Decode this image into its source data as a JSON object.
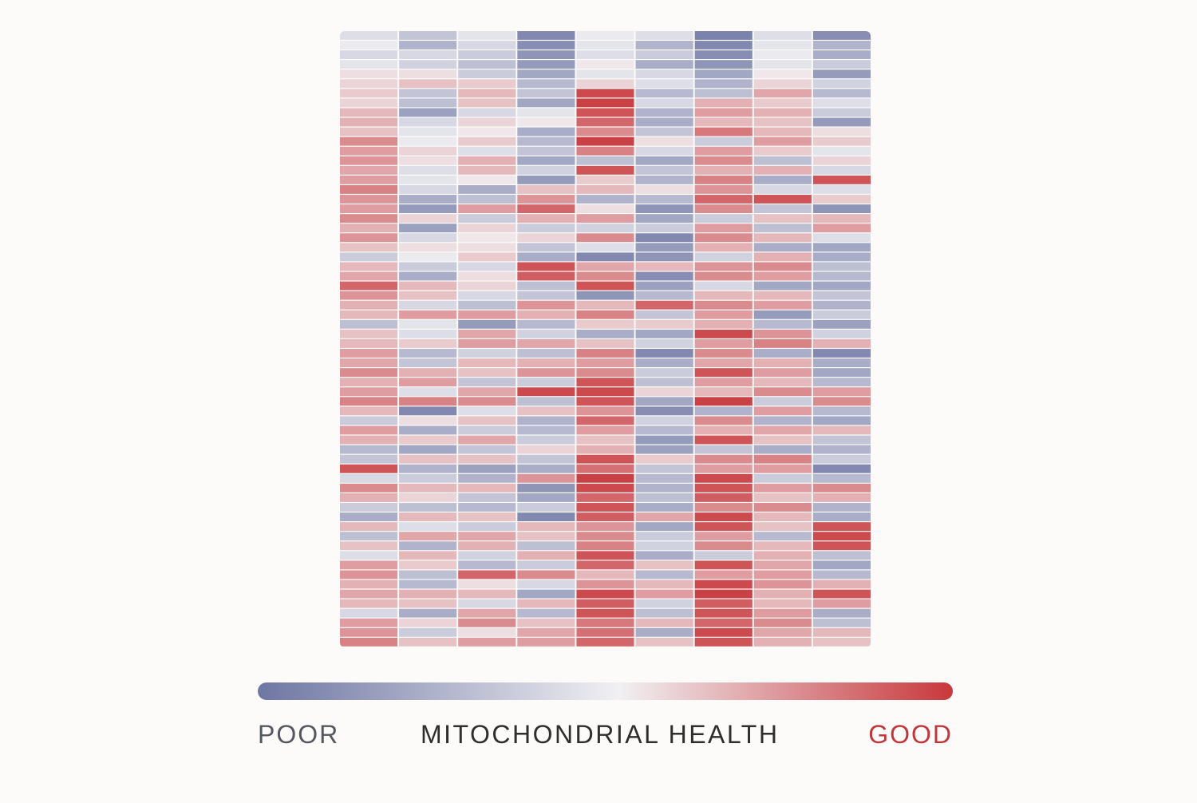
{
  "chart_data": {
    "type": "heatmap",
    "title": "",
    "n_columns": 9,
    "n_rows": 64,
    "value_range": [
      -1,
      1
    ],
    "colorscale": {
      "low": "#6e76a3",
      "mid": "#f1f0f3",
      "high": "#c8383c"
    },
    "legend": {
      "low_label": "POOR",
      "center_label": "MITOCHONDRIAL HEALTH",
      "high_label": "GOOD",
      "placement": "bottom"
    },
    "columns": [
      [
        -0.15,
        -0.05,
        -0.2,
        -0.1,
        0.1,
        0.15,
        0.2,
        0.15,
        0.3,
        0.35,
        0.25,
        0.55,
        0.45,
        0.5,
        0.4,
        0.45,
        0.6,
        0.5,
        0.45,
        0.55,
        0.35,
        0.5,
        0.25,
        -0.3,
        0.3,
        0.4,
        0.75,
        0.5,
        0.35,
        0.3,
        -0.4,
        0.25,
        0.3,
        0.45,
        0.4,
        0.55,
        0.35,
        0.45,
        0.6,
        0.3,
        -0.3,
        0.45,
        0.35,
        -0.45,
        -0.35,
        0.85,
        -0.2,
        0.55,
        0.35,
        -0.3,
        -0.55,
        0.3,
        -0.4,
        0.25,
        -0.15,
        0.45,
        0.5,
        0.35,
        0.4,
        0.3,
        -0.2,
        0.45,
        0.5,
        0.6
      ],
      [
        -0.35,
        -0.5,
        -0.2,
        -0.25,
        0.1,
        0.25,
        -0.35,
        -0.4,
        -0.65,
        -0.2,
        -0.1,
        -0.05,
        0.15,
        0.1,
        -0.15,
        -0.1,
        -0.2,
        -0.55,
        -0.7,
        0.15,
        -0.65,
        -0.2,
        0.1,
        -0.05,
        -0.3,
        -0.55,
        0.3,
        0.25,
        -0.2,
        0.45,
        -0.1,
        -0.15,
        0.2,
        -0.45,
        -0.35,
        0.35,
        0.45,
        -0.15,
        0.6,
        -0.85,
        0.1,
        -0.55,
        0.2,
        -0.6,
        0.25,
        -0.5,
        -0.3,
        0.3,
        0.15,
        -0.4,
        0.3,
        -0.15,
        0.4,
        -0.5,
        0.3,
        0.2,
        -0.4,
        -0.45,
        0.35,
        0.25,
        -0.55,
        0.15,
        -0.3,
        0.25
      ],
      [
        -0.1,
        -0.2,
        -0.3,
        -0.4,
        -0.3,
        0.2,
        0.3,
        0.25,
        -0.2,
        0.15,
        0.05,
        0.2,
        -0.15,
        0.35,
        0.3,
        0.05,
        -0.55,
        -0.4,
        0.45,
        -0.3,
        0.15,
        0.05,
        0.1,
        0.2,
        -0.2,
        0.1,
        0.15,
        -0.2,
        -0.4,
        0.45,
        -0.7,
        0.4,
        0.45,
        -0.25,
        0.3,
        0.25,
        -0.35,
        0.4,
        0.55,
        -0.15,
        0.25,
        -0.3,
        0.4,
        -0.35,
        0.25,
        -0.65,
        -0.5,
        0.3,
        -0.35,
        -0.45,
        0.25,
        -0.3,
        0.4,
        0.35,
        -0.25,
        -0.45,
        0.75,
        0.1,
        0.3,
        -0.2,
        0.4,
        0.55,
        0.1,
        0.45
      ],
      [
        -0.85,
        -0.8,
        -0.75,
        -0.7,
        -0.6,
        -0.45,
        -0.35,
        -0.6,
        -0.1,
        0.05,
        -0.55,
        -0.45,
        -0.35,
        -0.6,
        -0.25,
        -0.7,
        0.25,
        0.5,
        0.75,
        0.35,
        -0.3,
        0.15,
        -0.35,
        -0.55,
        0.85,
        0.8,
        -0.4,
        -0.35,
        0.5,
        0.35,
        -0.45,
        -0.25,
        0.4,
        -0.4,
        0.35,
        0.5,
        -0.3,
        0.9,
        -0.4,
        0.25,
        -0.5,
        -0.45,
        -0.3,
        0.15,
        -0.35,
        -0.55,
        0.5,
        -0.75,
        -0.6,
        -0.3,
        -0.85,
        0.3,
        0.25,
        -0.4,
        0.35,
        -0.3,
        0.55,
        -0.2,
        -0.6,
        0.3,
        -0.45,
        0.25,
        0.4,
        0.45
      ],
      [
        -0.05,
        -0.1,
        -0.15,
        0.05,
        -0.1,
        0.15,
        0.9,
        0.95,
        0.85,
        0.75,
        0.55,
        0.95,
        0.6,
        -0.4,
        0.85,
        0.2,
        0.3,
        -0.5,
        0.1,
        0.45,
        -0.25,
        0.55,
        -0.15,
        -0.85,
        0.4,
        0.55,
        0.85,
        -0.75,
        0.3,
        0.6,
        0.2,
        -0.55,
        0.25,
        0.6,
        0.45,
        0.55,
        0.85,
        0.9,
        0.85,
        0.5,
        0.75,
        0.45,
        0.25,
        0.35,
        0.85,
        0.7,
        0.95,
        0.9,
        0.75,
        0.85,
        0.8,
        0.5,
        0.55,
        0.6,
        0.85,
        0.75,
        0.3,
        0.5,
        0.9,
        0.8,
        0.85,
        0.65,
        0.7,
        0.75
      ],
      [
        -0.15,
        -0.5,
        -0.3,
        -0.55,
        -0.2,
        -0.15,
        -0.45,
        -0.2,
        -0.5,
        -0.55,
        -0.35,
        0.1,
        -0.2,
        -0.6,
        -0.35,
        -0.5,
        0.1,
        -0.45,
        -0.75,
        -0.6,
        -0.3,
        -0.85,
        -0.7,
        -0.75,
        0.3,
        -0.8,
        -0.65,
        -0.45,
        0.75,
        -0.35,
        0.2,
        -0.6,
        -0.25,
        -0.85,
        -0.55,
        -0.3,
        -0.4,
        0.15,
        -0.6,
        -0.8,
        -0.25,
        -0.45,
        -0.7,
        -0.65,
        0.2,
        -0.35,
        -0.45,
        -0.5,
        -0.4,
        -0.55,
        0.4,
        -0.6,
        -0.3,
        -0.25,
        -0.55,
        0.25,
        -0.45,
        0.3,
        0.45,
        -0.25,
        -0.4,
        0.3,
        -0.55,
        0.25
      ],
      [
        -0.9,
        -0.85,
        -0.8,
        -0.75,
        -0.6,
        -0.5,
        -0.4,
        0.35,
        0.45,
        0.3,
        0.65,
        -0.3,
        0.45,
        0.55,
        0.35,
        0.6,
        0.5,
        0.75,
        0.55,
        -0.3,
        0.45,
        0.55,
        0.35,
        -0.25,
        0.5,
        0.55,
        -0.2,
        0.3,
        0.55,
        0.45,
        0.35,
        0.9,
        0.45,
        0.55,
        0.4,
        0.85,
        0.45,
        0.3,
        0.95,
        -0.5,
        0.55,
        0.35,
        0.85,
        -0.35,
        0.55,
        0.45,
        0.9,
        0.85,
        0.8,
        0.55,
        0.9,
        0.85,
        0.45,
        0.55,
        -0.3,
        0.85,
        0.45,
        0.9,
        0.95,
        0.8,
        0.85,
        0.75,
        0.9,
        0.85
      ],
      [
        -0.15,
        -0.1,
        -0.05,
        -0.1,
        0.05,
        0.15,
        0.4,
        0.2,
        0.35,
        0.25,
        0.3,
        0.45,
        0.2,
        -0.4,
        0.35,
        -0.55,
        -0.2,
        0.85,
        -0.35,
        0.25,
        -0.4,
        0.3,
        -0.55,
        0.35,
        0.55,
        0.45,
        -0.6,
        0.3,
        0.45,
        -0.7,
        -0.45,
        0.5,
        0.6,
        -0.55,
        0.35,
        0.45,
        0.3,
        0.55,
        -0.3,
        0.45,
        -0.5,
        0.4,
        0.25,
        -0.55,
        0.6,
        0.45,
        -0.3,
        0.45,
        0.25,
        0.55,
        0.3,
        0.25,
        -0.45,
        0.3,
        0.35,
        0.4,
        0.45,
        0.5,
        0.35,
        0.3,
        0.45,
        0.55,
        0.4,
        0.35
      ],
      [
        -0.8,
        -0.5,
        -0.55,
        -0.3,
        -0.7,
        -0.25,
        -0.45,
        -0.15,
        -0.3,
        -0.7,
        0.1,
        0.2,
        -0.1,
        0.15,
        -0.2,
        0.85,
        -0.15,
        0.2,
        -0.75,
        0.3,
        0.45,
        -0.15,
        -0.6,
        -0.55,
        -0.4,
        -0.45,
        -0.6,
        -0.35,
        -0.5,
        -0.3,
        -0.65,
        -0.25,
        0.35,
        -0.85,
        -0.55,
        -0.6,
        -0.45,
        0.45,
        0.55,
        -0.45,
        -0.6,
        0.3,
        -0.35,
        -0.5,
        -0.3,
        -0.85,
        -0.45,
        0.55,
        0.35,
        -0.5,
        -0.55,
        0.85,
        0.9,
        0.85,
        -0.4,
        -0.6,
        -0.45,
        0.35,
        0.85,
        0.45,
        -0.55,
        -0.4,
        0.3,
        0.25
      ]
    ]
  }
}
